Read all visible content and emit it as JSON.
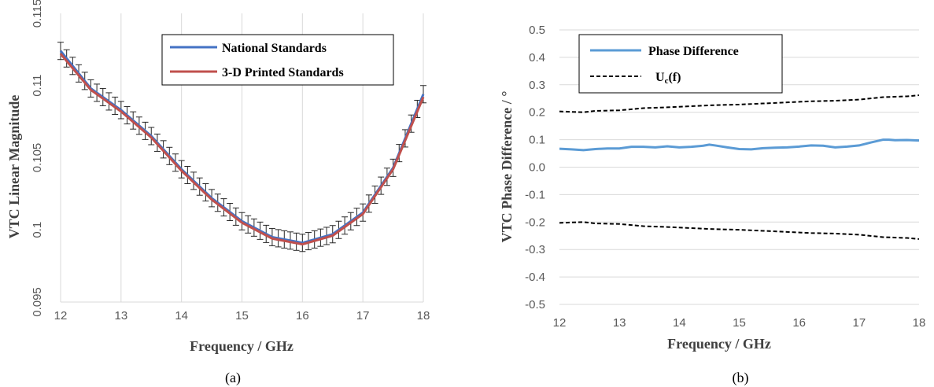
{
  "colors": {
    "national": "#4472c4",
    "printed": "#c0504d",
    "phase": "#5b9bd5",
    "uncertainty": "#000000",
    "errorbar": "#262626",
    "grid": "#d9d9d9"
  },
  "chart_data": [
    {
      "type": "line",
      "caption": "(a)",
      "xlabel": "Frequency / GHz",
      "ylabel": "VTC Linear Magnitude",
      "xlim": [
        12,
        18
      ],
      "ylim": [
        0.095,
        0.115
      ],
      "xticks": [
        "12",
        "13",
        "14",
        "15",
        "16",
        "17",
        "18"
      ],
      "yticks": [
        "0.095",
        "0.1",
        "0.105",
        "0.11",
        "0.115"
      ],
      "grid": "vertical",
      "legend_position": "top-right",
      "x": [
        12,
        12.5,
        13,
        13.5,
        14,
        14.5,
        15,
        15.5,
        16,
        16.5,
        17,
        17.5,
        18
      ],
      "series": [
        {
          "name": "National Standards",
          "values": [
            0.1124,
            0.1098,
            0.1083,
            0.1065,
            0.1042,
            0.1022,
            0.1006,
            0.0995,
            0.0991,
            0.0997,
            0.1012,
            0.1043,
            0.1094
          ]
        },
        {
          "name": "3-D Printed Standards",
          "values": [
            0.1122,
            0.1097,
            0.1082,
            0.1064,
            0.1041,
            0.1021,
            0.1005,
            0.0994,
            0.099,
            0.0996,
            0.1011,
            0.1042,
            0.1092
          ]
        }
      ],
      "error_bar_halfwidth": 0.0006
    },
    {
      "type": "line",
      "caption": "(b)",
      "xlabel": "Frequency / GHz",
      "ylabel": "VTC Phase Difference / °",
      "xlim": [
        12,
        18
      ],
      "ylim": [
        -0.5,
        0.5
      ],
      "xticks": [
        "12",
        "13",
        "14",
        "15",
        "16",
        "17",
        "18"
      ],
      "yticks": [
        "-0.5",
        "-0.4",
        "-0.3",
        "-0.2",
        "-0.1",
        "0.0",
        "0.1",
        "0.2",
        "0.3",
        "0.4",
        "0.5"
      ],
      "grid": "horizontal",
      "legend_position": "top-left",
      "x": [
        12,
        12.2,
        12.4,
        12.6,
        12.8,
        13,
        13.2,
        13.4,
        13.6,
        13.8,
        14,
        14.2,
        14.4,
        14.5,
        14.6,
        14.8,
        15,
        15.2,
        15.4,
        15.6,
        15.8,
        16,
        16.2,
        16.4,
        16.6,
        16.8,
        17,
        17.2,
        17.4,
        17.5,
        17.6,
        17.8,
        18
      ],
      "series": [
        {
          "name": "Phase Difference",
          "values": [
            0.067,
            0.065,
            0.062,
            0.066,
            0.068,
            0.068,
            0.074,
            0.074,
            0.072,
            0.076,
            0.072,
            0.074,
            0.078,
            0.082,
            0.079,
            0.072,
            0.066,
            0.065,
            0.069,
            0.071,
            0.072,
            0.075,
            0.079,
            0.078,
            0.072,
            0.075,
            0.079,
            0.09,
            0.1,
            0.1,
            0.098,
            0.099,
            0.097
          ]
        }
      ],
      "uncertainty_label_main": "U",
      "uncertainty_label_sub": "c",
      "uncertainty_label_tail": "(f)",
      "uncertainty_x": [
        12,
        12.4,
        12.6,
        13,
        13.4,
        13.8,
        14.2,
        14.6,
        15,
        15.4,
        15.8,
        16.2,
        16.6,
        17,
        17.4,
        17.8,
        18
      ],
      "uncertainty_upper": [
        0.203,
        0.2,
        0.205,
        0.207,
        0.215,
        0.218,
        0.222,
        0.226,
        0.228,
        0.232,
        0.236,
        0.24,
        0.242,
        0.246,
        0.255,
        0.258,
        0.262
      ],
      "uncertainty_lower": [
        -0.203,
        -0.2,
        -0.205,
        -0.207,
        -0.215,
        -0.218,
        -0.222,
        -0.226,
        -0.228,
        -0.232,
        -0.236,
        -0.24,
        -0.242,
        -0.246,
        -0.255,
        -0.258,
        -0.262
      ]
    }
  ]
}
